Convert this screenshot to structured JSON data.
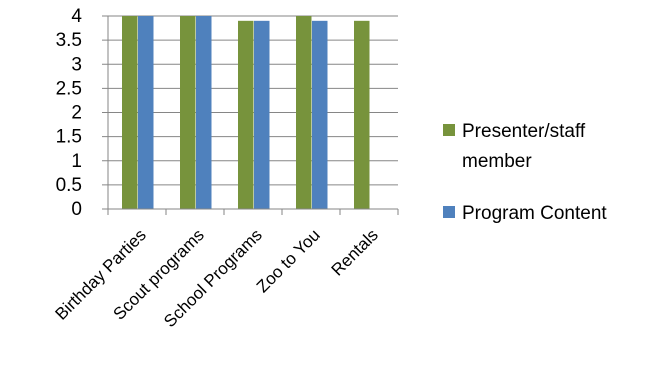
{
  "chart_data": {
    "type": "bar",
    "categories": [
      "Birthday Parties",
      "Scout programs",
      "School Programs",
      "Zoo to You",
      "Rentals"
    ],
    "series": [
      {
        "name": "Presenter/staff member",
        "values": [
          4.0,
          4.0,
          3.9,
          4.0,
          3.9
        ],
        "color": "#77933c"
      },
      {
        "name": "Program Content",
        "values": [
          4.0,
          4.0,
          3.9,
          3.9,
          null
        ],
        "color": "#4f81bd"
      }
    ],
    "ylim": [
      0,
      4
    ],
    "yticks": [
      "0",
      "0.5",
      "1",
      "1.5",
      "2",
      "2.5",
      "3",
      "3.5",
      "4"
    ],
    "grid": true,
    "legend": "right",
    "legend_lines": [
      [
        "Presenter/staff",
        "member"
      ],
      [
        "Program Content"
      ]
    ]
  }
}
